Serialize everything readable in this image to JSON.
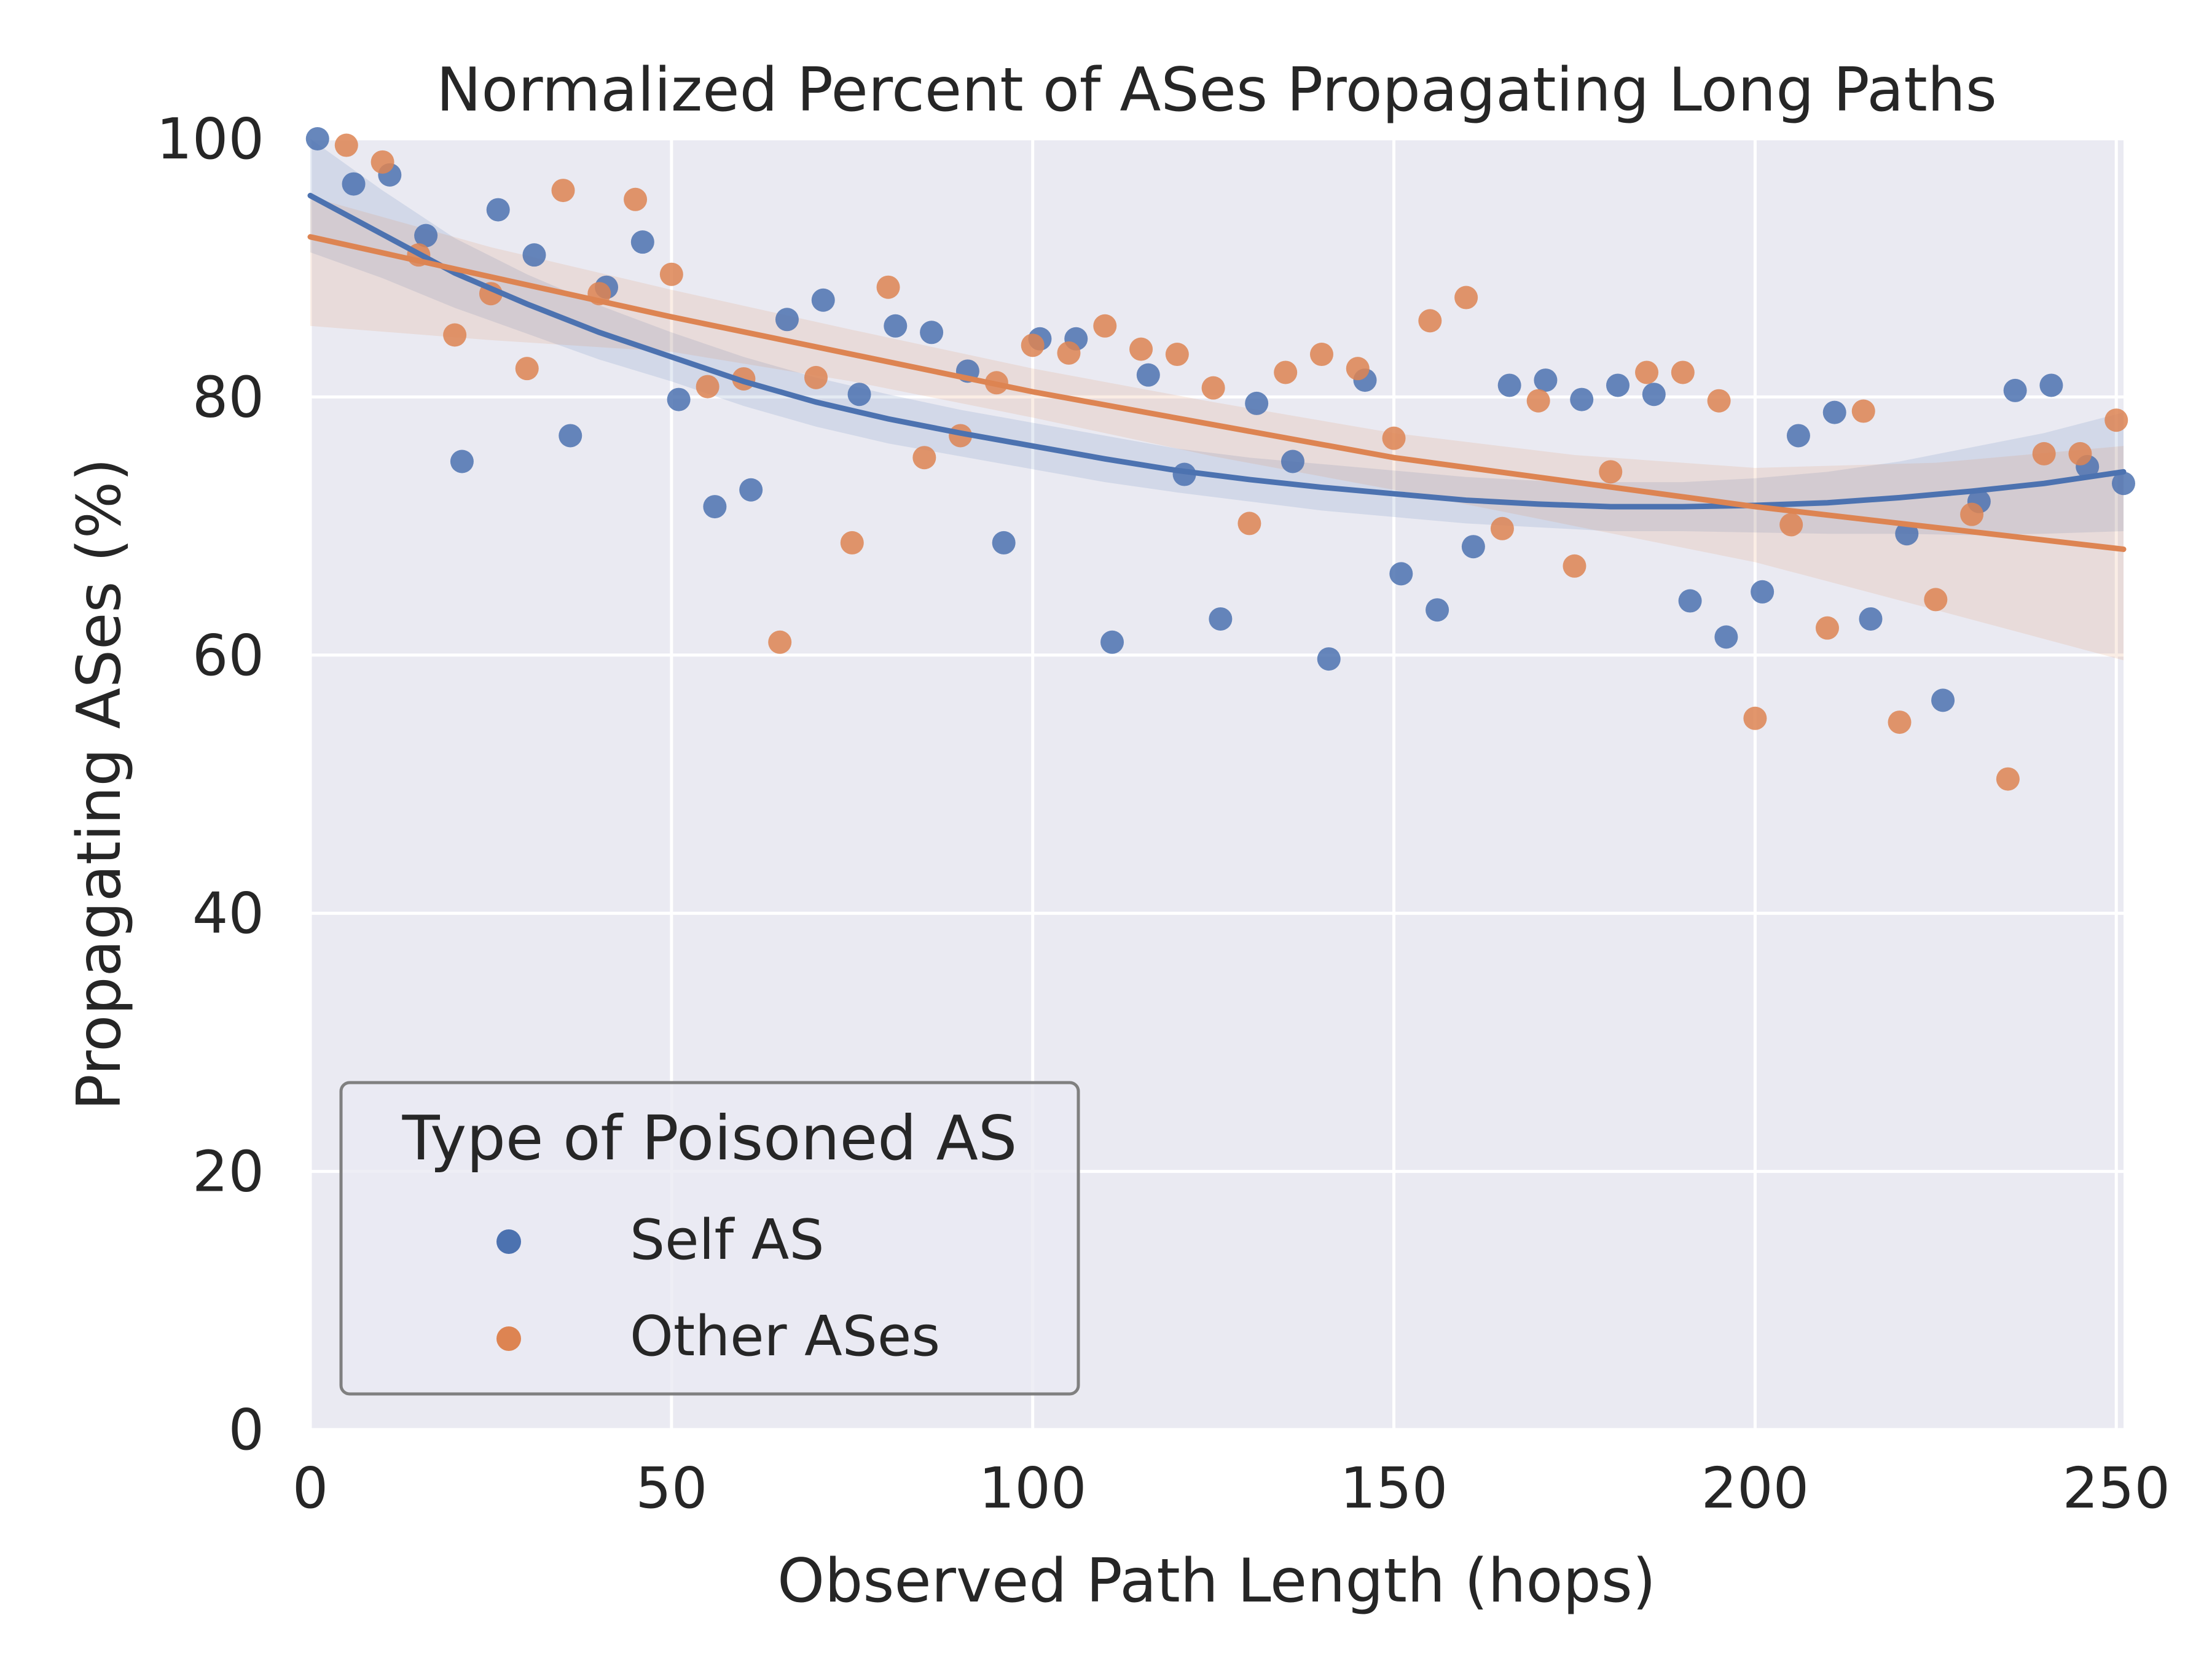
{
  "chart_data": {
    "type": "scatter",
    "title": "Normalized Percent of ASes Propagating Long Paths",
    "xlabel": "Observed Path Length (hops)",
    "ylabel": "Propagating ASes (%)",
    "xlim": [
      0,
      251
    ],
    "ylim": [
      0,
      100
    ],
    "x_ticks": [
      0,
      50,
      100,
      150,
      200,
      250
    ],
    "y_ticks": [
      0,
      20,
      40,
      60,
      80,
      100
    ],
    "x_tick_labels": [
      "0",
      "50",
      "100",
      "150",
      "200",
      "250"
    ],
    "y_tick_labels": [
      "0",
      "20",
      "40",
      "60",
      "80",
      "100"
    ],
    "grid": true,
    "legend": {
      "title": "Type of Poisoned AS",
      "placement": "lower-left"
    },
    "series": [
      {
        "name": "Self AS",
        "color": "#4c72b0",
        "points": [
          [
            1,
            100
          ],
          [
            6,
            96.5
          ],
          [
            11,
            97.2
          ],
          [
            16,
            92.5
          ],
          [
            21,
            75
          ],
          [
            26,
            94.5
          ],
          [
            31,
            91
          ],
          [
            36,
            77
          ],
          [
            41,
            88.5
          ],
          [
            46,
            92
          ],
          [
            51,
            79.8
          ],
          [
            56,
            71.5
          ],
          [
            61,
            72.8
          ],
          [
            66,
            86
          ],
          [
            71,
            87.5
          ],
          [
            76,
            80.2
          ],
          [
            81,
            85.5
          ],
          [
            86,
            85
          ],
          [
            91,
            82
          ],
          [
            96,
            68.7
          ],
          [
            101,
            84.5
          ],
          [
            106,
            84.5
          ],
          [
            111,
            61
          ],
          [
            116,
            81.7
          ],
          [
            121,
            74
          ],
          [
            126,
            62.8
          ],
          [
            131,
            79.5
          ],
          [
            136,
            75
          ],
          [
            141,
            59.7
          ],
          [
            146,
            81.3
          ],
          [
            151,
            66.3
          ],
          [
            156,
            63.5
          ],
          [
            161,
            68.4
          ],
          [
            166,
            80.9
          ],
          [
            171,
            81.3
          ],
          [
            176,
            79.8
          ],
          [
            181,
            80.9
          ],
          [
            186,
            80.2
          ],
          [
            191,
            64.2
          ],
          [
            196,
            61.4
          ],
          [
            201,
            64.9
          ],
          [
            206,
            77
          ],
          [
            211,
            78.8
          ],
          [
            216,
            62.8
          ],
          [
            221,
            69.4
          ],
          [
            226,
            56.5
          ],
          [
            231,
            71.9
          ],
          [
            236,
            80.5
          ],
          [
            241,
            80.9
          ],
          [
            246,
            74.6
          ],
          [
            251,
            73.3
          ]
        ],
        "fit_curve": [
          [
            0,
            95.6
          ],
          [
            10,
            92.6
          ],
          [
            20,
            89.6
          ],
          [
            30,
            87.2
          ],
          [
            40,
            85
          ],
          [
            50,
            83.1
          ],
          [
            60,
            81.2
          ],
          [
            70,
            79.6
          ],
          [
            80,
            78.3
          ],
          [
            90,
            77.2
          ],
          [
            100,
            76.2
          ],
          [
            110,
            75.2
          ],
          [
            120,
            74.3
          ],
          [
            130,
            73.6
          ],
          [
            140,
            73
          ],
          [
            150,
            72.5
          ],
          [
            160,
            72
          ],
          [
            170,
            71.7
          ],
          [
            180,
            71.5
          ],
          [
            190,
            71.5
          ],
          [
            200,
            71.6
          ],
          [
            210,
            71.8
          ],
          [
            220,
            72.2
          ],
          [
            230,
            72.7
          ],
          [
            240,
            73.3
          ],
          [
            251,
            74.2
          ]
        ],
        "band_upper": [
          [
            0,
            100
          ],
          [
            10,
            96
          ],
          [
            20,
            92.3
          ],
          [
            30,
            89.5
          ],
          [
            40,
            87.1
          ],
          [
            50,
            85
          ],
          [
            60,
            83.1
          ],
          [
            70,
            81.5
          ],
          [
            80,
            80.2
          ],
          [
            90,
            79
          ],
          [
            100,
            78
          ],
          [
            110,
            77
          ],
          [
            120,
            76
          ],
          [
            130,
            75.3
          ],
          [
            140,
            74.8
          ],
          [
            150,
            74.3
          ],
          [
            160,
            73.8
          ],
          [
            170,
            73.5
          ],
          [
            180,
            73.4
          ],
          [
            190,
            73.4
          ],
          [
            200,
            73.7
          ],
          [
            210,
            74.2
          ],
          [
            220,
            75
          ],
          [
            230,
            76.1
          ],
          [
            240,
            77.2
          ],
          [
            251,
            78.8
          ]
        ],
        "band_lower": [
          [
            0,
            91.2
          ],
          [
            10,
            89.2
          ],
          [
            20,
            86.9
          ],
          [
            30,
            84.9
          ],
          [
            40,
            82.9
          ],
          [
            50,
            81.2
          ],
          [
            60,
            79.3
          ],
          [
            70,
            77.7
          ],
          [
            80,
            76.4
          ],
          [
            90,
            75.4
          ],
          [
            100,
            74.4
          ],
          [
            110,
            73.4
          ],
          [
            120,
            72.6
          ],
          [
            130,
            71.9
          ],
          [
            140,
            71.2
          ],
          [
            150,
            70.7
          ],
          [
            160,
            70.2
          ],
          [
            170,
            69.9
          ],
          [
            180,
            69.6
          ],
          [
            190,
            69.6
          ],
          [
            200,
            69.5
          ],
          [
            210,
            69.4
          ],
          [
            220,
            69.4
          ],
          [
            230,
            69.3
          ],
          [
            240,
            69.4
          ],
          [
            251,
            69.6
          ]
        ]
      },
      {
        "name": "Other ASes",
        "color": "#dd8452",
        "points": [
          [
            5,
            99.5
          ],
          [
            10,
            98.2
          ],
          [
            15,
            91
          ],
          [
            20,
            84.8
          ],
          [
            25,
            88
          ],
          [
            30,
            82.2
          ],
          [
            35,
            96
          ],
          [
            40,
            88
          ],
          [
            45,
            95.3
          ],
          [
            50,
            89.5
          ],
          [
            55,
            80.8
          ],
          [
            60,
            81.4
          ],
          [
            65,
            61
          ],
          [
            70,
            81.5
          ],
          [
            75,
            68.7
          ],
          [
            80,
            88.5
          ],
          [
            85,
            75.3
          ],
          [
            90,
            77
          ],
          [
            95,
            81.1
          ],
          [
            100,
            84
          ],
          [
            105,
            83.4
          ],
          [
            110,
            85.5
          ],
          [
            115,
            83.7
          ],
          [
            120,
            83.3
          ],
          [
            125,
            80.7
          ],
          [
            130,
            70.2
          ],
          [
            135,
            81.9
          ],
          [
            140,
            83.3
          ],
          [
            145,
            82.2
          ],
          [
            150,
            76.8
          ],
          [
            155,
            85.9
          ],
          [
            160,
            87.7
          ],
          [
            165,
            69.8
          ],
          [
            170,
            79.7
          ],
          [
            175,
            66.9
          ],
          [
            180,
            74.2
          ],
          [
            185,
            81.9
          ],
          [
            190,
            81.9
          ],
          [
            195,
            79.7
          ],
          [
            200,
            55.1
          ],
          [
            205,
            70.1
          ],
          [
            210,
            62.1
          ],
          [
            215,
            78.9
          ],
          [
            220,
            54.8
          ],
          [
            225,
            64.3
          ],
          [
            230,
            70.9
          ],
          [
            235,
            50.4
          ],
          [
            240,
            75.6
          ],
          [
            245,
            75.6
          ],
          [
            250,
            78.2
          ]
        ],
        "fit_curve": [
          [
            0,
            92.4
          ],
          [
            50,
            86.2
          ],
          [
            100,
            80.4
          ],
          [
            150,
            75.3
          ],
          [
            200,
            71.5
          ],
          [
            251,
            68.2
          ]
        ],
        "band_upper": [
          [
            0,
            95.5
          ],
          [
            25,
            91.6
          ],
          [
            50,
            88.3
          ],
          [
            75,
            85.2
          ],
          [
            100,
            82.2
          ],
          [
            125,
            79.6
          ],
          [
            150,
            77.2
          ],
          [
            175,
            75.5
          ],
          [
            200,
            74.5
          ],
          [
            225,
            74.9
          ],
          [
            251,
            76.2
          ]
        ],
        "band_lower": [
          [
            0,
            85.5
          ],
          [
            25,
            84.4
          ],
          [
            50,
            83.5
          ],
          [
            75,
            81.2
          ],
          [
            100,
            78.4
          ],
          [
            125,
            75.4
          ],
          [
            150,
            72.8
          ],
          [
            175,
            70
          ],
          [
            200,
            67.2
          ],
          [
            225,
            63.5
          ],
          [
            251,
            59.6
          ]
        ]
      }
    ]
  }
}
